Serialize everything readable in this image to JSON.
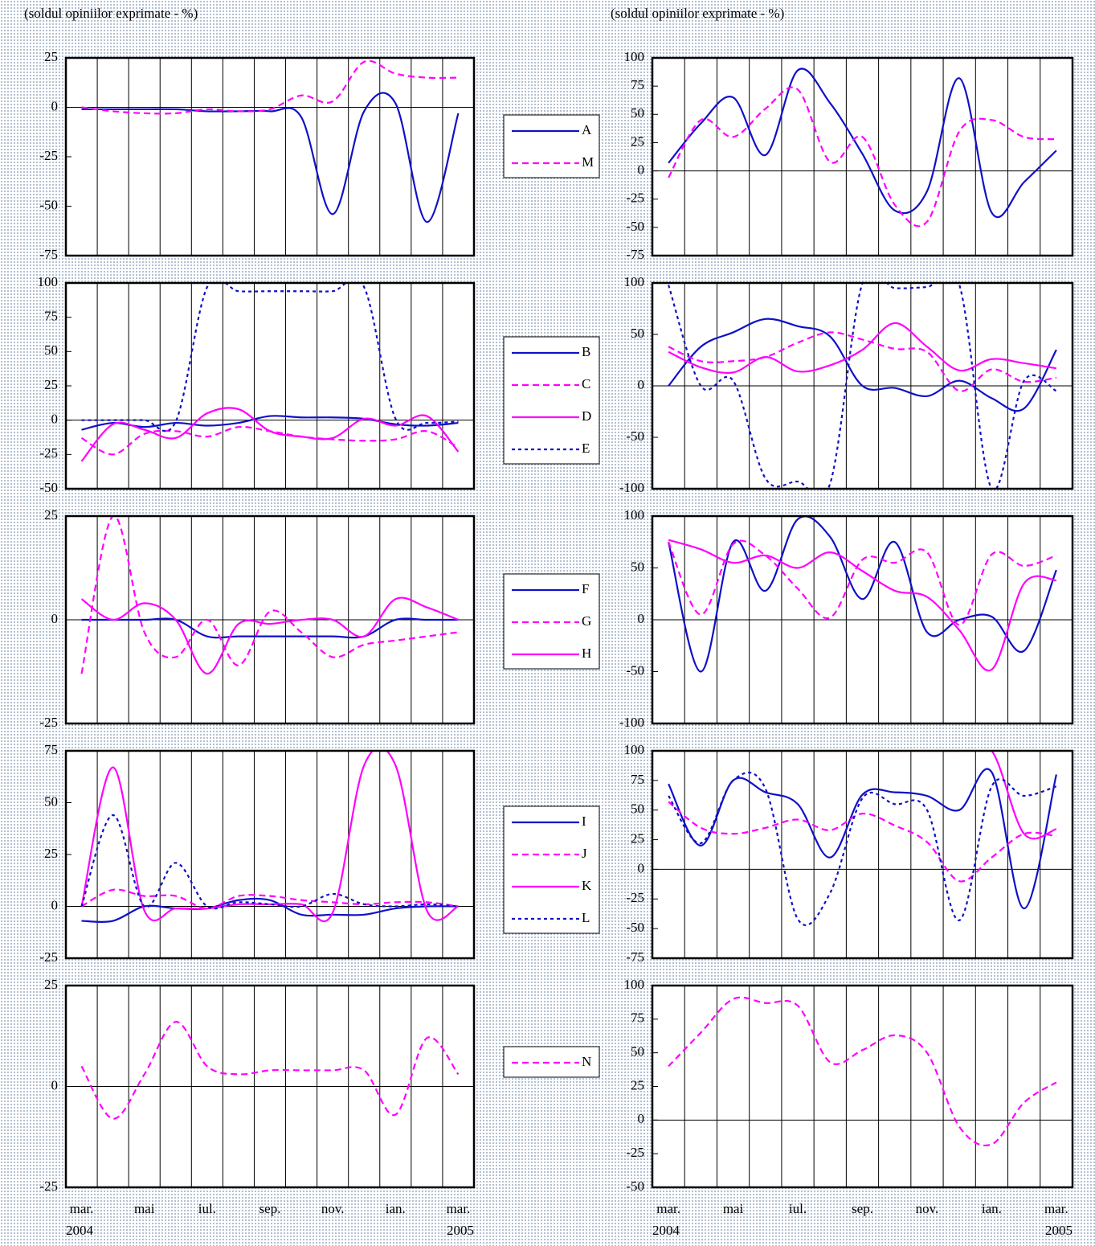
{
  "chart_data": [
    {
      "type": "line",
      "subtitle": "(soldul opiniilor exprimate - %)",
      "ylim": [
        -75,
        25
      ],
      "yticks": [
        -75,
        -50,
        -25,
        0,
        25
      ],
      "series": [
        {
          "name": "A",
          "color": "#1010c8",
          "dash": "solid",
          "values": [
            -1,
            -1,
            -1,
            -1,
            -2,
            -2,
            -2,
            -5,
            -54,
            -2,
            2,
            -58,
            -3
          ]
        },
        {
          "name": "M",
          "color": "#ff00ff",
          "dash": "dashed",
          "values": [
            0,
            -2,
            -3,
            -3,
            -1,
            -2,
            -1,
            6,
            3,
            23,
            17,
            15,
            15
          ]
        }
      ]
    },
    {
      "type": "line",
      "subtitle": "(soldul opiniilor exprimate - %)",
      "ylim": [
        -75,
        100
      ],
      "yticks": [
        -75,
        -50,
        -25,
        0,
        25,
        50,
        75,
        100
      ],
      "series": [
        {
          "color": "#1010c8",
          "dash": "solid",
          "values": [
            7,
            42,
            65,
            14,
            89,
            60,
            15,
            -35,
            -18,
            82,
            -37,
            -10,
            18
          ]
        },
        {
          "color": "#ff00ff",
          "dash": "dashed",
          "values": [
            -6,
            45,
            30,
            55,
            72,
            8,
            30,
            -30,
            -45,
            35,
            45,
            30,
            28
          ]
        }
      ]
    },
    {
      "type": "line",
      "ylim": [
        -50,
        100
      ],
      "yticks": [
        -50,
        -25,
        0,
        25,
        50,
        75,
        100
      ],
      "series": [
        {
          "name": "B",
          "color": "#1010c8",
          "dash": "solid",
          "values": [
            -7,
            -2,
            -5,
            -2,
            -4,
            -2,
            3,
            2,
            2,
            1,
            -3,
            -4,
            -2
          ]
        },
        {
          "name": "C",
          "color": "#ff00ff",
          "dash": "dashed",
          "values": [
            -13,
            -25,
            -10,
            -8,
            -12,
            -5,
            -8,
            -12,
            -14,
            -15,
            -14,
            -8,
            -20
          ]
        },
        {
          "name": "D",
          "color": "#ff00ff",
          "dash": "solid",
          "values": [
            -30,
            -3,
            -7,
            -13,
            5,
            8,
            -8,
            -12,
            -13,
            1,
            -4,
            3,
            -23
          ]
        },
        {
          "name": "E",
          "color": "#1010c8",
          "dash": "dotted",
          "values": [
            0,
            0,
            0,
            -1,
            97,
            94,
            94,
            94,
            94,
            97,
            1,
            -2,
            -1
          ]
        }
      ]
    },
    {
      "type": "line",
      "ylim": [
        -100,
        100
      ],
      "yticks": [
        -100,
        -50,
        0,
        50,
        100
      ],
      "series": [
        {
          "color": "#1010c8",
          "dash": "solid",
          "values": [
            0,
            38,
            52,
            65,
            58,
            48,
            0,
            -2,
            -10,
            5,
            -12,
            -22,
            35
          ]
        },
        {
          "color": "#ff00ff",
          "dash": "dashed",
          "values": [
            38,
            24,
            24,
            28,
            42,
            52,
            45,
            36,
            33,
            -5,
            16,
            4,
            8
          ]
        },
        {
          "color": "#ff00ff",
          "dash": "solid",
          "values": [
            33,
            18,
            13,
            28,
            14,
            20,
            35,
            61,
            38,
            15,
            26,
            22,
            17
          ]
        },
        {
          "color": "#1010c8",
          "dash": "dotted",
          "values": [
            98,
            0,
            5,
            -90,
            -93,
            -95,
            100,
            95,
            96,
            98,
            -100,
            5,
            -5
          ]
        }
      ]
    },
    {
      "type": "line",
      "ylim": [
        -25,
        25
      ],
      "yticks": [
        -25,
        0,
        25
      ],
      "series": [
        {
          "name": "F",
          "color": "#1010c8",
          "dash": "solid",
          "values": [
            0,
            0,
            0,
            0,
            -4,
            -4,
            -4,
            -4,
            -4,
            -4,
            0,
            0,
            0
          ]
        },
        {
          "name": "G",
          "color": "#ff00ff",
          "dash": "dashed",
          "values": [
            -13,
            25,
            -3,
            -9,
            0,
            -11,
            2,
            -3,
            -9,
            -6,
            -5,
            -4,
            -3
          ]
        },
        {
          "name": "H",
          "color": "#ff00ff",
          "dash": "solid",
          "values": [
            5,
            0,
            4,
            0,
            -13,
            -1,
            -1,
            0,
            0,
            -4,
            5,
            3,
            0
          ]
        }
      ]
    },
    {
      "type": "line",
      "ylim": [
        -100,
        100
      ],
      "yticks": [
        -100,
        -50,
        0,
        50,
        100
      ],
      "series": [
        {
          "color": "#1010c8",
          "dash": "solid",
          "values": [
            75,
            -50,
            75,
            28,
            97,
            80,
            20,
            75,
            -12,
            0,
            3,
            -30,
            48
          ]
        },
        {
          "color": "#ff00ff",
          "dash": "dashed",
          "values": [
            75,
            5,
            73,
            62,
            30,
            2,
            58,
            55,
            65,
            -5,
            63,
            52,
            62
          ]
        },
        {
          "color": "#ff00ff",
          "dash": "solid",
          "values": [
            77,
            68,
            55,
            62,
            50,
            65,
            47,
            28,
            22,
            -10,
            -48,
            35,
            38
          ]
        }
      ]
    },
    {
      "type": "line",
      "ylim": [
        -25,
        75
      ],
      "yticks": [
        -25,
        0,
        25,
        50,
        75
      ],
      "series": [
        {
          "name": "I",
          "color": "#1010c8",
          "dash": "solid",
          "values": [
            -7,
            -7,
            0,
            -1,
            -1,
            3,
            3,
            -4,
            -4,
            -4,
            -1,
            0,
            0
          ]
        },
        {
          "name": "J",
          "color": "#ff00ff",
          "dash": "dashed",
          "values": [
            0,
            8,
            5,
            5,
            -1,
            5,
            5,
            3,
            2,
            1,
            2,
            2,
            0
          ]
        },
        {
          "name": "K",
          "color": "#ff00ff",
          "dash": "solid",
          "values": [
            0,
            67,
            -2,
            -1,
            -1,
            1,
            1,
            1,
            -3,
            68,
            68,
            -2,
            0
          ]
        },
        {
          "name": "L",
          "color": "#1010c8",
          "dash": "dotted",
          "values": [
            0,
            44,
            0,
            21,
            0,
            2,
            1,
            0,
            6,
            1,
            0,
            1,
            0
          ]
        }
      ]
    },
    {
      "type": "line",
      "ylim": [
        -75,
        100
      ],
      "yticks": [
        -75,
        -50,
        -25,
        0,
        25,
        50,
        75,
        100
      ],
      "series": [
        {
          "color": "#1010c8",
          "dash": "solid",
          "values": [
            72,
            20,
            75,
            65,
            55,
            10,
            63,
            65,
            62,
            50,
            82,
            -33,
            80
          ]
        },
        {
          "color": "#ff00ff",
          "dash": "dashed",
          "values": [
            57,
            35,
            30,
            35,
            42,
            33,
            47,
            37,
            23,
            -10,
            10,
            30,
            28
          ]
        },
        {
          "color": "#ff00ff",
          "dash": "solid",
          "values": [
            100,
            100,
            100,
            100,
            100,
            100,
            100,
            100,
            100,
            100,
            100,
            30,
            34
          ]
        },
        {
          "color": "#1010c8",
          "dash": "dotted",
          "values": [
            62,
            22,
            75,
            68,
            -42,
            -20,
            60,
            55,
            50,
            -43,
            70,
            62,
            70
          ]
        }
      ]
    },
    {
      "type": "line",
      "ylim": [
        -25,
        25
      ],
      "yticks": [
        -25,
        0,
        25
      ],
      "categories": [
        "mar.",
        null,
        "mai",
        null,
        "iul.",
        null,
        "sep.",
        null,
        "nov.",
        null,
        "ian.",
        null,
        "mar."
      ],
      "years": [
        "2004",
        "2005"
      ],
      "series": [
        {
          "name": "N",
          "color": "#ff00ff",
          "dash": "dashed",
          "values": [
            5,
            -8,
            3,
            16,
            5,
            3,
            4,
            4,
            4,
            4,
            -7,
            12,
            3
          ]
        }
      ]
    },
    {
      "type": "line",
      "ylim": [
        -50,
        100
      ],
      "yticks": [
        -50,
        -25,
        0,
        25,
        50,
        75,
        100
      ],
      "categories": [
        "mar.",
        null,
        "mai",
        null,
        "iul.",
        null,
        "sep.",
        null,
        "nov.",
        null,
        "ian.",
        null,
        "mar."
      ],
      "years": [
        "2004",
        "2005"
      ],
      "series": [
        {
          "color": "#ff00ff",
          "dash": "dashed",
          "values": [
            40,
            65,
            90,
            87,
            85,
            43,
            52,
            63,
            50,
            -5,
            -18,
            13,
            28
          ]
        }
      ]
    }
  ]
}
